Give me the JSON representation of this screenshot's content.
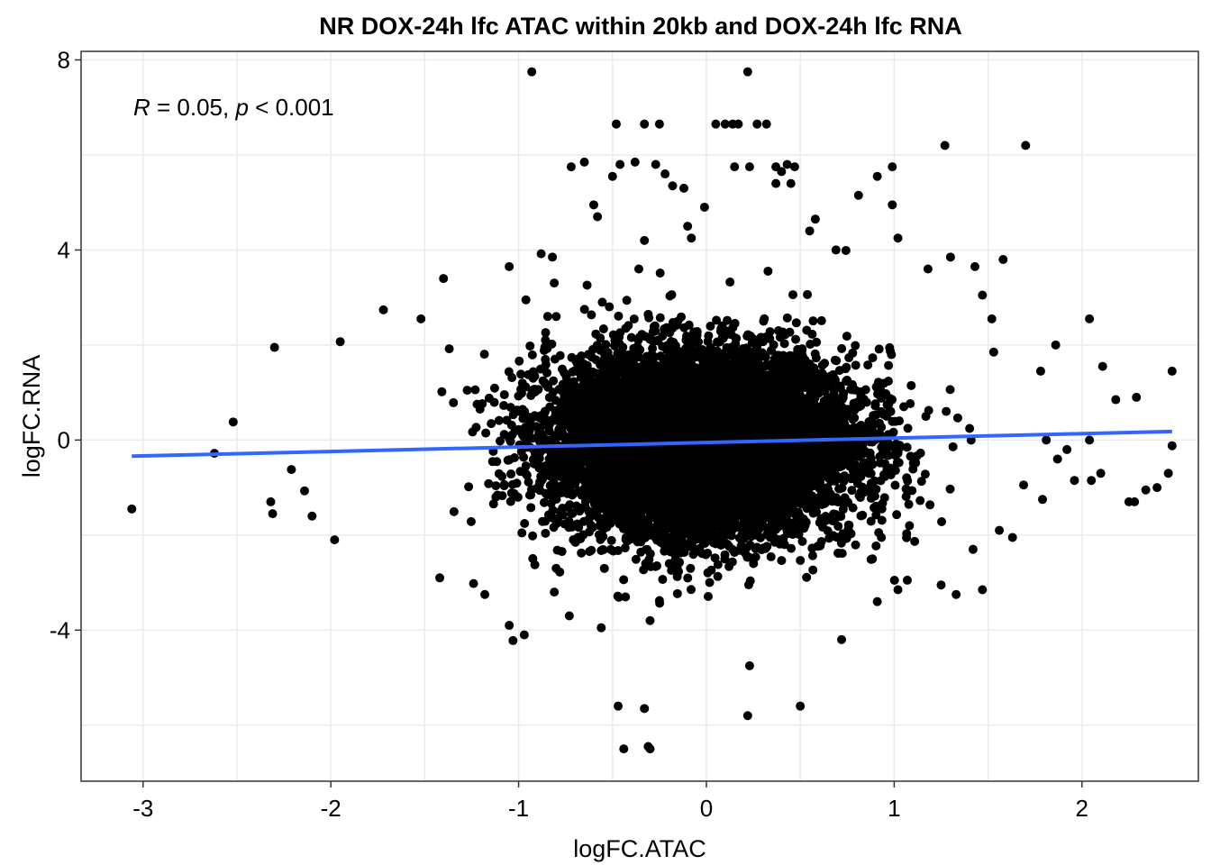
{
  "chart_data": {
    "type": "scatter",
    "title": "NR DOX-24h lfc ATAC within 20kb and DOX-24h lfc RNA",
    "xlabel": "logFC.ATAC",
    "ylabel": "logFC.RNA",
    "xlim": [
      -3.33,
      2.62
    ],
    "ylim": [
      -7.18,
      8.18
    ],
    "x_ticks": [
      -3,
      -2,
      -1,
      0,
      1,
      2
    ],
    "x_tick_labels": [
      "-3",
      "-2",
      "-1",
      "0",
      "1",
      "2"
    ],
    "y_ticks": [
      -4,
      0,
      4,
      8
    ],
    "y_tick_labels": [
      "-4",
      "0",
      "4",
      "8"
    ],
    "grid": true,
    "annotation": {
      "r_symbol": "R",
      "r_value": " = 0.05, ",
      "p_symbol": "p",
      "p_value": " < 0.001"
    },
    "point_color": "#000000",
    "fit_color": "#3366FF",
    "fit_line": {
      "x": [
        -3.06,
        2.48
      ],
      "y": [
        -0.34,
        0.18
      ]
    },
    "dense_cloud": {
      "x_center": -0.02,
      "y_center": -0.08,
      "x_spread": 0.42,
      "y_spread": 0.95,
      "point_count": 9000
    },
    "outlier_points": [
      [
        -3.06,
        -1.45
      ],
      [
        -2.62,
        -0.28
      ],
      [
        -2.52,
        0.38
      ],
      [
        -2.3,
        1.95
      ],
      [
        -2.32,
        -1.3
      ],
      [
        -2.31,
        -1.55
      ],
      [
        -2.21,
        -0.62
      ],
      [
        -2.14,
        -1.07
      ],
      [
        -2.1,
        -1.6
      ],
      [
        -1.95,
        2.07
      ],
      [
        -1.98,
        -2.1
      ],
      [
        -1.72,
        2.74
      ],
      [
        -1.52,
        2.55
      ],
      [
        -1.4,
        3.4
      ],
      [
        -1.05,
        3.65
      ],
      [
        -1.24,
        -3.02
      ],
      [
        -1.18,
        -3.25
      ],
      [
        -1.05,
        -3.9
      ],
      [
        -1.03,
        -4.22
      ],
      [
        -0.97,
        -4.1
      ],
      [
        -0.93,
        7.75
      ],
      [
        -0.88,
        3.92
      ],
      [
        -0.82,
        3.85
      ],
      [
        -0.8,
        2.6
      ],
      [
        -0.8,
        -2.7
      ],
      [
        -0.81,
        -3.2
      ],
      [
        -0.73,
        -3.7
      ],
      [
        -0.72,
        5.75
      ],
      [
        -0.65,
        5.85
      ],
      [
        -0.6,
        4.95
      ],
      [
        -0.58,
        4.7
      ],
      [
        -0.56,
        -3.95
      ],
      [
        -0.5,
        5.55
      ],
      [
        -0.46,
        5.8
      ],
      [
        -0.38,
        5.85
      ],
      [
        -0.36,
        3.6
      ],
      [
        -0.33,
        4.2
      ],
      [
        -0.3,
        -3.8
      ],
      [
        -0.27,
        5.8
      ],
      [
        -0.22,
        5.6
      ],
      [
        -0.18,
        5.35
      ],
      [
        -0.12,
        5.3
      ],
      [
        -0.1,
        4.5
      ],
      [
        -0.08,
        4.25
      ],
      [
        -0.01,
        4.9
      ],
      [
        -0.48,
        6.65
      ],
      [
        -0.33,
        6.65
      ],
      [
        -0.25,
        6.65
      ],
      [
        0.05,
        6.65
      ],
      [
        0.1,
        6.65
      ],
      [
        0.14,
        6.65
      ],
      [
        0.17,
        6.65
      ],
      [
        0.27,
        6.65
      ],
      [
        0.32,
        6.65
      ],
      [
        0.22,
        7.75
      ],
      [
        0.15,
        5.75
      ],
      [
        0.23,
        5.75
      ],
      [
        0.37,
        5.75
      ],
      [
        0.4,
        5.65
      ],
      [
        0.43,
        5.8
      ],
      [
        0.47,
        5.75
      ],
      [
        0.37,
        5.4
      ],
      [
        0.45,
        5.4
      ],
      [
        0.55,
        4.4
      ],
      [
        0.58,
        4.65
      ],
      [
        0.69,
        4.0
      ],
      [
        0.81,
        5.15
      ],
      [
        0.91,
        5.55
      ],
      [
        0.99,
        5.75
      ],
      [
        0.99,
        4.95
      ],
      [
        1.02,
        4.25
      ],
      [
        1.18,
        3.6
      ],
      [
        1.3,
        3.85
      ],
      [
        1.43,
        3.65
      ],
      [
        1.47,
        3.05
      ],
      [
        1.52,
        2.55
      ],
      [
        1.58,
        3.8
      ],
      [
        1.47,
        -3.15
      ],
      [
        1.33,
        -3.25
      ],
      [
        1.25,
        -3.05
      ],
      [
        1.07,
        -2.95
      ],
      [
        1.02,
        -3.15
      ],
      [
        0.91,
        -3.4
      ],
      [
        0.72,
        -4.2
      ],
      [
        0.5,
        -5.6
      ],
      [
        0.23,
        -4.75
      ],
      [
        0.22,
        -5.8
      ],
      [
        -0.47,
        -5.6
      ],
      [
        -0.44,
        -6.5
      ],
      [
        -0.33,
        -5.65
      ],
      [
        -0.3,
        -6.5
      ],
      [
        -0.31,
        -6.45
      ],
      [
        1.27,
        6.2
      ],
      [
        1.7,
        6.2
      ],
      [
        2.04,
        2.55
      ],
      [
        1.86,
        2.0
      ],
      [
        1.78,
        1.45
      ],
      [
        1.81,
        0.0
      ],
      [
        1.87,
        -0.4
      ],
      [
        1.96,
        -0.85
      ],
      [
        2.05,
        -0.85
      ],
      [
        2.1,
        -0.7
      ],
      [
        2.11,
        1.55
      ],
      [
        2.18,
        0.85
      ],
      [
        2.25,
        -1.3
      ],
      [
        2.28,
        -1.3
      ],
      [
        2.34,
        -1.05
      ],
      [
        2.4,
        -1.0
      ],
      [
        2.46,
        -0.7
      ],
      [
        2.48,
        -0.12
      ],
      [
        2.48,
        1.45
      ],
      [
        2.29,
        0.9
      ],
      [
        2.04,
        0.0
      ],
      [
        1.92,
        -0.2
      ],
      [
        1.53,
        1.85
      ],
      [
        1.56,
        -1.9
      ],
      [
        1.63,
        -2.05
      ],
      [
        1.79,
        -1.25
      ],
      [
        1.42,
        -2.3
      ],
      [
        -1.42,
        -2.9
      ]
    ]
  }
}
